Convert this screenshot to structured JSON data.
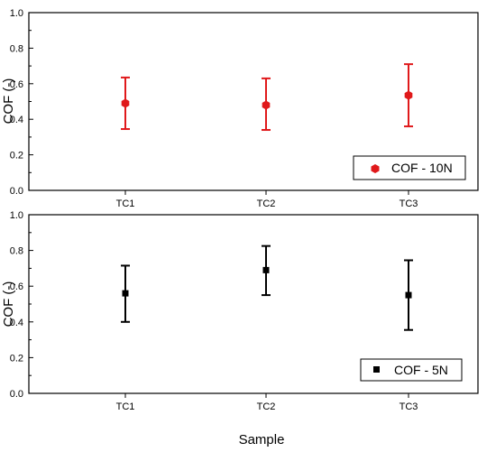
{
  "chart_data": [
    {
      "type": "scatter",
      "title": "",
      "xlabel": "",
      "ylabel": "COF (-)",
      "ylim": [
        0.0,
        1.0
      ],
      "yticks": [
        "0.0",
        "0.2",
        "0.4",
        "0.6",
        "0.8",
        "1.0"
      ],
      "categories": [
        "TC1",
        "TC2",
        "TC3"
      ],
      "grid": false,
      "legend_position": "bottom-right",
      "series": [
        {
          "name": "COF - 10N",
          "color": "#e0191b",
          "marker": "hexagon",
          "values": [
            0.49,
            0.48,
            0.535
          ],
          "error_low": [
            0.345,
            0.34,
            0.36
          ],
          "error_high": [
            0.635,
            0.63,
            0.71
          ]
        }
      ]
    },
    {
      "type": "scatter",
      "title": "",
      "xlabel": "Sample",
      "ylabel": "COF (-)",
      "ylim": [
        0.0,
        1.0
      ],
      "yticks": [
        "0.0",
        "0.2",
        "0.4",
        "0.6",
        "0.8",
        "1.0"
      ],
      "categories": [
        "TC1",
        "TC2",
        "TC3"
      ],
      "grid": false,
      "legend_position": "bottom-right",
      "series": [
        {
          "name": "COF - 5N",
          "color": "#000000",
          "marker": "square",
          "values": [
            0.56,
            0.69,
            0.55
          ],
          "error_low": [
            0.4,
            0.55,
            0.355
          ],
          "error_high": [
            0.715,
            0.825,
            0.745
          ]
        }
      ]
    }
  ]
}
